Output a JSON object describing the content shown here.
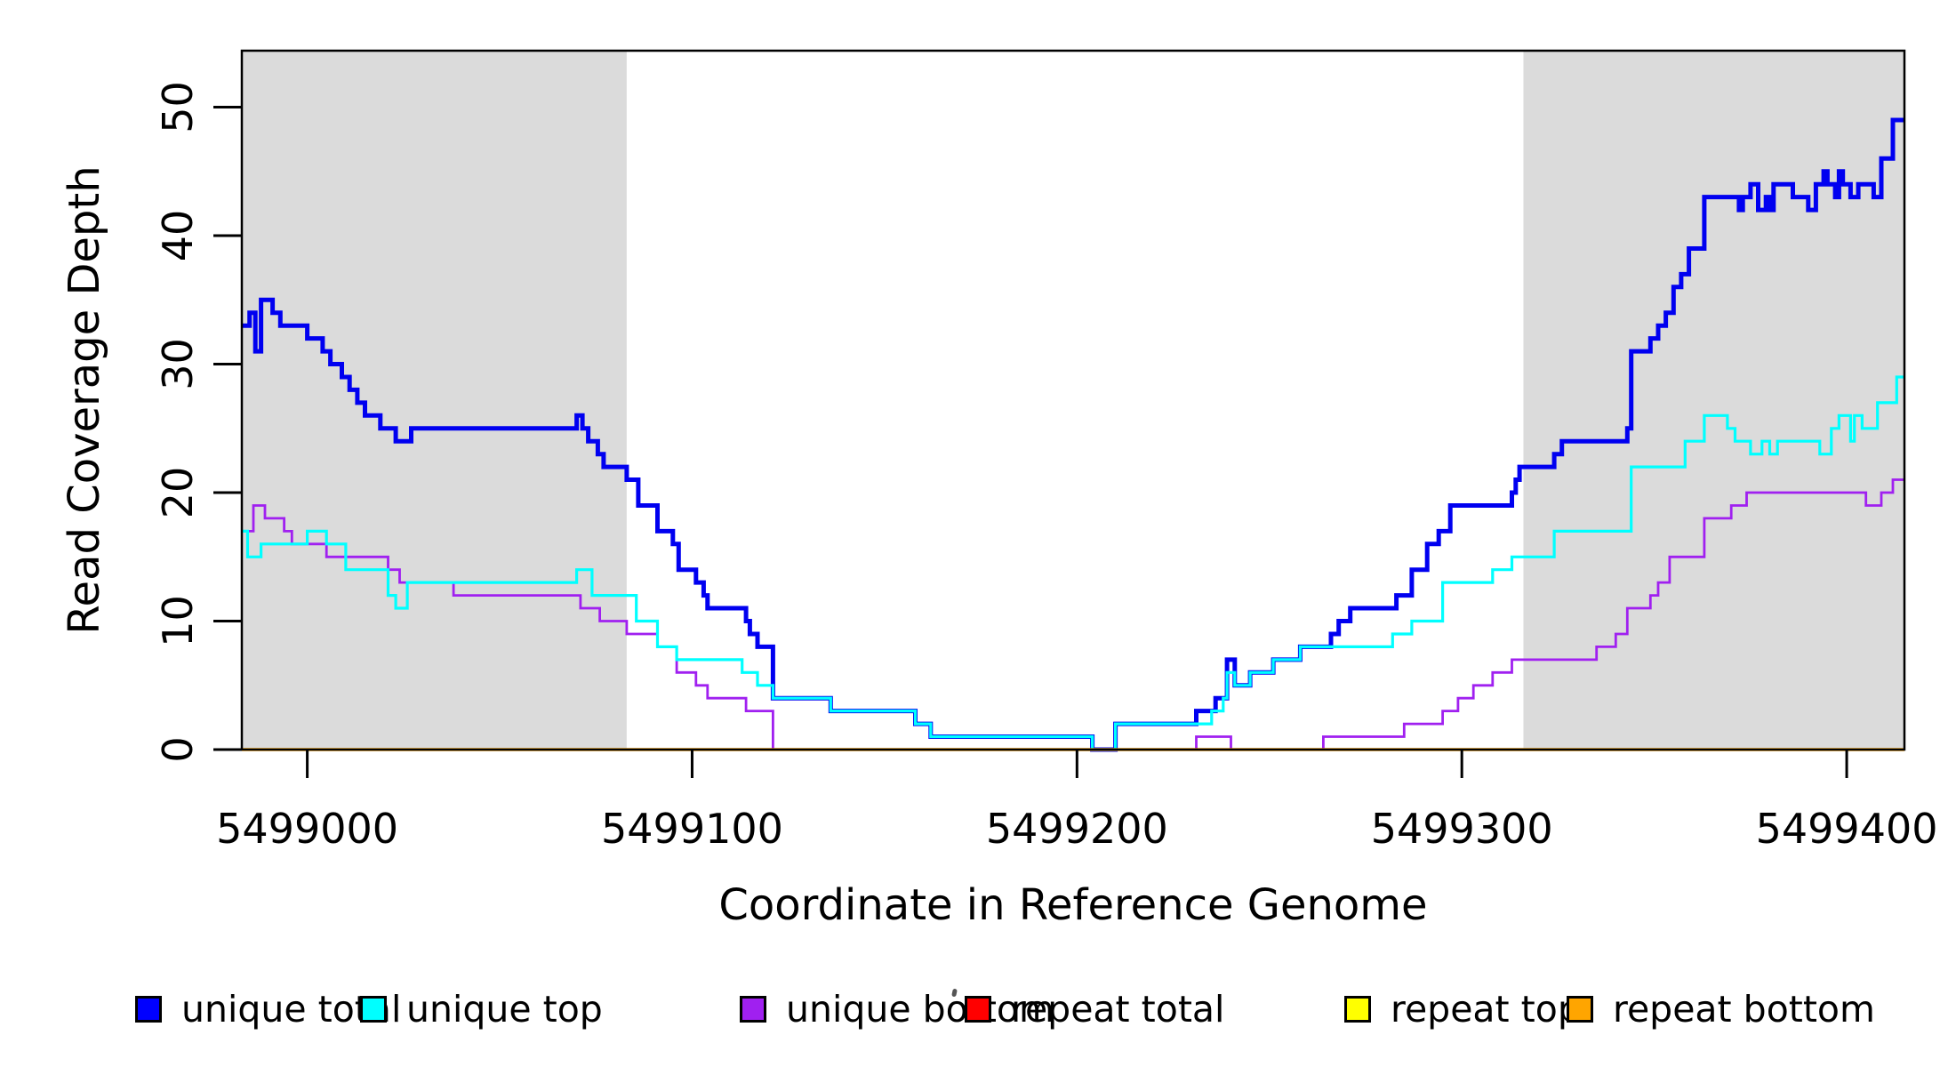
{
  "chart_data": {
    "type": "line",
    "subtype": "step-coverage-plot",
    "title": "",
    "xlabel": "Coordinate in Reference Genome",
    "ylabel": "Read Coverage Depth",
    "xlim": [
      5498983,
      5499415
    ],
    "ylim": [
      0,
      54
    ],
    "grid": "off",
    "xticks": [
      5499000,
      5499100,
      5499200,
      5499300,
      5499400
    ],
    "xtick_labels": [
      "5499000",
      "5499100",
      "5499200",
      "5499300",
      "5499400"
    ],
    "yticks": [
      0,
      10,
      20,
      30,
      40,
      50
    ],
    "ytick_labels": [
      "0",
      "10",
      "20",
      "30",
      "40",
      "50"
    ],
    "shade_color": "#DBDBDB",
    "shaded_regions": [
      [
        5498983,
        5499083
      ],
      [
        5499316,
        5499415
      ]
    ],
    "legend_position": "bottom",
    "series": [
      {
        "name": "repeat total",
        "color": "#FF0000",
        "width": 3,
        "points": [
          [
            5498983,
            0
          ],
          [
            5499415,
            0
          ]
        ]
      },
      {
        "name": "repeat top",
        "color": "#FFFF00",
        "width": 3,
        "points": [
          [
            5498983,
            0
          ],
          [
            5499415,
            0
          ]
        ]
      },
      {
        "name": "unique bottom",
        "color": "#A020F0",
        "width": 2.8,
        "points": [
          [
            5498983,
            17
          ],
          [
            5498986,
            19
          ],
          [
            5498989,
            18
          ],
          [
            5498994,
            17
          ],
          [
            5498996,
            16
          ],
          [
            5499005,
            15
          ],
          [
            5499021,
            14
          ],
          [
            5499024,
            13
          ],
          [
            5499038,
            12
          ],
          [
            5499071,
            11
          ],
          [
            5499076,
            10
          ],
          [
            5499083,
            9
          ],
          [
            5499091,
            8
          ],
          [
            5499096,
            6
          ],
          [
            5499101,
            5
          ],
          [
            5499104,
            4
          ],
          [
            5499114,
            3
          ],
          [
            5499121,
            0
          ],
          [
            5499231,
            1
          ],
          [
            5499240,
            0
          ],
          [
            5499264,
            1
          ],
          [
            5499285,
            2
          ],
          [
            5499295,
            3
          ],
          [
            5499299,
            4
          ],
          [
            5499303,
            5
          ],
          [
            5499308,
            6
          ],
          [
            5499313,
            7
          ],
          [
            5499335,
            8
          ],
          [
            5499340,
            9
          ],
          [
            5499343,
            11
          ],
          [
            5499349,
            12
          ],
          [
            5499351,
            13
          ],
          [
            5499354,
            15
          ],
          [
            5499363,
            18
          ],
          [
            5499370,
            19
          ],
          [
            5499374,
            20
          ],
          [
            5499405,
            19
          ],
          [
            5499409,
            20
          ],
          [
            5499412,
            21
          ],
          [
            5499415,
            21
          ]
        ]
      },
      {
        "name": "unique total",
        "color": "#0000F0",
        "width": 5,
        "points": [
          [
            5498983,
            33
          ],
          [
            5498985,
            34
          ],
          [
            5498986.5,
            31
          ],
          [
            5498988,
            35
          ],
          [
            5498991,
            34
          ],
          [
            5498993,
            33
          ],
          [
            5499000,
            32
          ],
          [
            5499004,
            31
          ],
          [
            5499006,
            30
          ],
          [
            5499009,
            29
          ],
          [
            5499011,
            28
          ],
          [
            5499013,
            27
          ],
          [
            5499015,
            26
          ],
          [
            5499019,
            25
          ],
          [
            5499023,
            24
          ],
          [
            5499027,
            25
          ],
          [
            5499070,
            26
          ],
          [
            5499071.5,
            25
          ],
          [
            5499073,
            24
          ],
          [
            5499075.5,
            23
          ],
          [
            5499077,
            22
          ],
          [
            5499083,
            21
          ],
          [
            5499086,
            19
          ],
          [
            5499091,
            17
          ],
          [
            5499095,
            16
          ],
          [
            5499096.5,
            14
          ],
          [
            5499101,
            13
          ],
          [
            5499103,
            12
          ],
          [
            5499104,
            11
          ],
          [
            5499114,
            10
          ],
          [
            5499115,
            9
          ],
          [
            5499117,
            8
          ],
          [
            5499121,
            4
          ],
          [
            5499136,
            3
          ],
          [
            5499158,
            2
          ],
          [
            5499162,
            1
          ],
          [
            5499204,
            0
          ],
          [
            5499210,
            2
          ],
          [
            5499231,
            3
          ],
          [
            5499236,
            4
          ],
          [
            5499239,
            7
          ],
          [
            5499241,
            5
          ],
          [
            5499245,
            6
          ],
          [
            5499251,
            7
          ],
          [
            5499258,
            8
          ],
          [
            5499266,
            9
          ],
          [
            5499268,
            10
          ],
          [
            5499271,
            11
          ],
          [
            5499283,
            12
          ],
          [
            5499287,
            14
          ],
          [
            5499291,
            16
          ],
          [
            5499294,
            17
          ],
          [
            5499297,
            19
          ],
          [
            5499313,
            20
          ],
          [
            5499314,
            21
          ],
          [
            5499315,
            22
          ],
          [
            5499324,
            23
          ],
          [
            5499326,
            24
          ],
          [
            5499343,
            25
          ],
          [
            5499344,
            31
          ],
          [
            5499349,
            32
          ],
          [
            5499351,
            33
          ],
          [
            5499353,
            34
          ],
          [
            5499355,
            36
          ],
          [
            5499357,
            37
          ],
          [
            5499359,
            39
          ],
          [
            5499363,
            43
          ],
          [
            5499372,
            42
          ],
          [
            5499373,
            43
          ],
          [
            5499375,
            44
          ],
          [
            5499377,
            42
          ],
          [
            5499379,
            43
          ],
          [
            5499380,
            42
          ],
          [
            5499381,
            44
          ],
          [
            5499386,
            43
          ],
          [
            5499390,
            42
          ],
          [
            5499392,
            44
          ],
          [
            5499394,
            45
          ],
          [
            5499395,
            44
          ],
          [
            5499397,
            43
          ],
          [
            5499398,
            45
          ],
          [
            5499399,
            44
          ],
          [
            5499401,
            43
          ],
          [
            5499403,
            44
          ],
          [
            5499407,
            43
          ],
          [
            5499409,
            46
          ],
          [
            5499412,
            49
          ],
          [
            5499415,
            49
          ]
        ]
      },
      {
        "name": "unique top",
        "color": "#00FFFF",
        "width": 3.2,
        "points": [
          [
            5498983,
            17
          ],
          [
            5498984.5,
            15
          ],
          [
            5498988,
            16
          ],
          [
            5499000,
            17
          ],
          [
            5499005,
            16
          ],
          [
            5499010,
            14
          ],
          [
            5499021,
            12
          ],
          [
            5499023,
            11
          ],
          [
            5499026,
            13
          ],
          [
            5499070,
            14
          ],
          [
            5499074,
            12
          ],
          [
            5499085.5,
            10
          ],
          [
            5499091,
            8
          ],
          [
            5499096,
            7
          ],
          [
            5499113,
            6
          ],
          [
            5499117,
            5
          ],
          [
            5499121,
            4
          ],
          [
            5499136,
            3
          ],
          [
            5499158,
            2
          ],
          [
            5499162,
            1
          ],
          [
            5499204,
            0
          ],
          [
            5499210,
            2
          ],
          [
            5499235,
            3
          ],
          [
            5499238,
            4
          ],
          [
            5499239,
            6
          ],
          [
            5499241,
            5
          ],
          [
            5499245,
            6
          ],
          [
            5499251,
            7
          ],
          [
            5499258,
            8
          ],
          [
            5499282,
            9
          ],
          [
            5499287,
            10
          ],
          [
            5499295,
            13
          ],
          [
            5499308,
            14
          ],
          [
            5499313,
            15
          ],
          [
            5499324,
            17
          ],
          [
            5499344,
            22
          ],
          [
            5499358,
            24
          ],
          [
            5499363,
            26
          ],
          [
            5499369,
            25
          ],
          [
            5499371,
            24
          ],
          [
            5499375,
            23
          ],
          [
            5499378,
            24
          ],
          [
            5499380,
            23
          ],
          [
            5499382,
            24
          ],
          [
            5499393,
            23
          ],
          [
            5499396,
            25
          ],
          [
            5499398,
            26
          ],
          [
            5499401,
            24
          ],
          [
            5499402,
            26
          ],
          [
            5499404,
            25
          ],
          [
            5499408,
            27
          ],
          [
            5499413,
            29
          ],
          [
            5499415,
            29
          ]
        ]
      },
      {
        "name": "repeat bottom",
        "color": "#FFA500",
        "width": 3.5,
        "points": [
          [
            5498983,
            0
          ],
          [
            5499415,
            0
          ]
        ]
      }
    ]
  },
  "axes": {
    "x_title": "Coordinate in Reference Genome",
    "y_title": "Read Coverage Depth"
  },
  "legend": {
    "items": [
      {
        "label": "unique total",
        "color": "#0000FF"
      },
      {
        "label": "unique top",
        "color": "#00FFFF"
      },
      {
        "label": "unique bottom",
        "color": "#A020F0"
      },
      {
        "label": "repeat total",
        "color": "#FF0000"
      },
      {
        "label": "repeat top",
        "color": "#FFFF00"
      },
      {
        "label": "repeat bottom",
        "color": "#FFA500"
      }
    ]
  }
}
